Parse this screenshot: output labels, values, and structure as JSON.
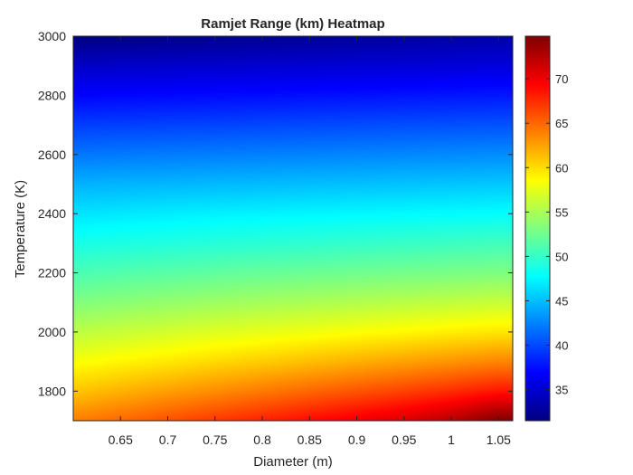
{
  "chart_data": {
    "type": "heatmap",
    "title": "Ramjet Range (km) Heatmap",
    "xlabel": "Diameter (m)",
    "ylabel": "Temperature (K)",
    "xlim": [
      0.6,
      1.065
    ],
    "ylim": [
      1700,
      3000
    ],
    "x_ticks": [
      0.65,
      0.7,
      0.75,
      0.8,
      0.85,
      0.9,
      0.95,
      1,
      1.05
    ],
    "x_tick_labels": [
      "0.65",
      "0.7",
      "0.75",
      "0.8",
      "0.85",
      "0.9",
      "0.95",
      "1",
      "1.05"
    ],
    "y_ticks": [
      1800,
      2000,
      2200,
      2400,
      2600,
      2800,
      3000
    ],
    "y_tick_labels": [
      "1800",
      "2000",
      "2200",
      "2400",
      "2600",
      "2800",
      "3000"
    ],
    "colormap": "jet",
    "colorbar": {
      "clim": [
        31.5,
        74.8
      ],
      "ticks": [
        35,
        40,
        45,
        50,
        55,
        60,
        65,
        70
      ],
      "tick_labels": [
        "35",
        "40",
        "45",
        "50",
        "55",
        "60",
        "65",
        "70"
      ]
    },
    "x": [
      0.6,
      0.65,
      0.7,
      0.75,
      0.8,
      0.85,
      0.9,
      0.95,
      1.0,
      1.05
    ],
    "y": [
      1700,
      1800,
      1900,
      2000,
      2100,
      2200,
      2300,
      2400,
      2500,
      2600,
      2700,
      2800,
      2900,
      3000
    ],
    "z": [
      [
        64.0,
        65.0,
        66.0,
        67.0,
        68.0,
        69.0,
        70.0,
        71.0,
        72.5,
        74.8
      ],
      [
        61.0,
        61.8,
        62.6,
        63.4,
        64.2,
        65.0,
        65.8,
        66.6,
        67.5,
        68.5
      ],
      [
        58.3,
        58.9,
        59.5,
        60.1,
        60.7,
        61.3,
        61.9,
        62.5,
        63.1,
        63.7
      ],
      [
        55.7,
        56.2,
        56.7,
        57.2,
        57.6,
        58.0,
        58.4,
        58.8,
        59.2,
        59.6
      ],
      [
        53.2,
        53.6,
        54.0,
        54.4,
        54.7,
        55.0,
        55.3,
        55.6,
        55.9,
        56.2
      ],
      [
        50.9,
        51.2,
        51.5,
        51.8,
        52.1,
        52.3,
        52.5,
        52.7,
        52.9,
        53.1
      ],
      [
        48.7,
        48.9,
        49.1,
        49.3,
        49.5,
        49.7,
        49.9,
        50.1,
        50.3,
        50.5
      ],
      [
        46.6,
        46.8,
        47.0,
        47.2,
        47.3,
        47.4,
        47.5,
        47.6,
        47.7,
        47.8
      ],
      [
        44.5,
        44.6,
        44.7,
        44.8,
        44.9,
        45.0,
        45.1,
        45.2,
        45.3,
        45.4
      ],
      [
        42.0,
        42.1,
        42.2,
        42.3,
        42.4,
        42.5,
        42.6,
        42.7,
        42.8,
        42.9
      ],
      [
        39.5,
        39.6,
        39.7,
        39.8,
        39.9,
        40.0,
        40.1,
        40.2,
        40.3,
        40.4
      ],
      [
        37.0,
        37.1,
        37.2,
        37.3,
        37.4,
        37.5,
        37.6,
        37.7,
        37.8,
        37.9
      ],
      [
        34.5,
        34.6,
        34.7,
        34.8,
        34.9,
        35.0,
        35.1,
        35.2,
        35.3,
        35.4
      ],
      [
        31.5,
        31.7,
        31.9,
        32.1,
        32.3,
        32.5,
        32.7,
        32.9,
        33.1,
        33.3
      ]
    ]
  }
}
